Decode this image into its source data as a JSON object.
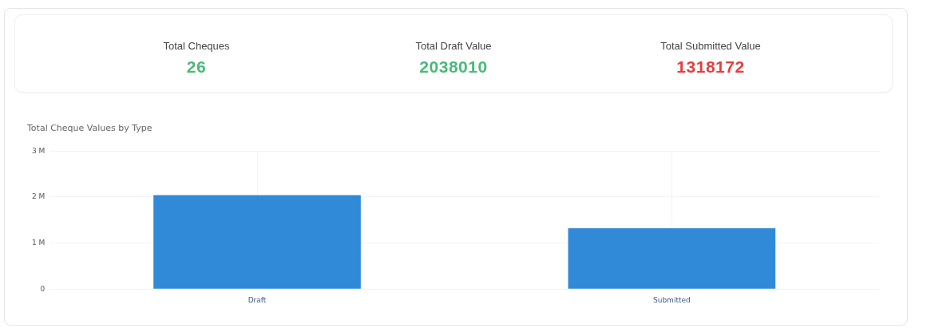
{
  "chart_data": [
    {
      "type": "other",
      "categories": [
        "Total Cheques",
        "Total Draft Value",
        "Total Submitted Value"
      ],
      "values": [
        26,
        2038010,
        1318172
      ],
      "colors": [
        "#48bb78",
        "#48bb78",
        "#e53e3e"
      ],
      "data_labels": true
    },
    {
      "type": "bar",
      "title": "Total Cheque Values by Type",
      "categories": [
        "Draft",
        "Submitted"
      ],
      "values": [
        2040000,
        1320000
      ],
      "color": "#318ad8",
      "ylim": [
        0,
        3000000
      ],
      "yticks": [
        0,
        {
          "value": 1000000,
          "label": "1 M"
        },
        {
          "value": 2000000,
          "label": "2 M"
        },
        {
          "value": 3000000,
          "label": "3 M"
        }
      ],
      "grid": true,
      "legend": false
    }
  ]
}
